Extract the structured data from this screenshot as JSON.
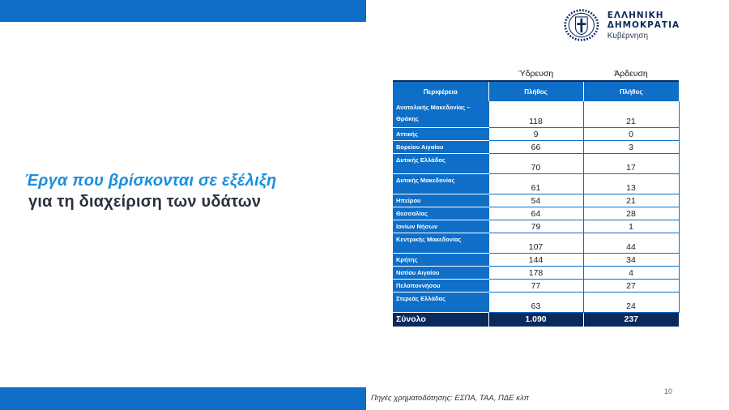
{
  "logo": {
    "title": "ΕΛΛΗΝΙΚΗ ΔΗΜΟΚΡΑΤΙΑ",
    "subtitle": "Κυβέρνηση",
    "icon": "greek-emblem-icon"
  },
  "heading": {
    "line1": "Έργα που βρίσκονται σε εξέλιξη",
    "line2": "για τη διαχείριση των υδάτων"
  },
  "table": {
    "group_headers": [
      "Ύδρευση",
      "Άρδευση"
    ],
    "sub_headers": [
      "Περιφέρεια",
      "Πλήθος",
      "Πλήθος"
    ],
    "rows": [
      {
        "region": "Ανατολικής Μακεδονίας – Θράκης",
        "water_supply": "118",
        "irrigation": "21"
      },
      {
        "region": "Αττικής",
        "water_supply": "9",
        "irrigation": "0"
      },
      {
        "region": "Βορείου Αιγαίου",
        "water_supply": "66",
        "irrigation": "3"
      },
      {
        "region": "Δυτικής Ελλάδας",
        "water_supply": "70",
        "irrigation": "17"
      },
      {
        "region": "Δυτικής Μακεδονίας",
        "water_supply": "61",
        "irrigation": "13"
      },
      {
        "region": "Ηπείρου",
        "water_supply": "54",
        "irrigation": "21"
      },
      {
        "region": "Θεσσαλίας",
        "water_supply": "64",
        "irrigation": "28"
      },
      {
        "region": "Ιονίων Νήσων",
        "water_supply": "79",
        "irrigation": "1"
      },
      {
        "region": "Κεντρικής Μακεδονίας",
        "water_supply": "107",
        "irrigation": "44"
      },
      {
        "region": "Κρήτης",
        "water_supply": "144",
        "irrigation": "34"
      },
      {
        "region": "Νοτίου Αιγαίου",
        "water_supply": "178",
        "irrigation": "4"
      },
      {
        "region": "Πελοποννήσου",
        "water_supply": "77",
        "irrigation": "27"
      },
      {
        "region": "Στερεάς Ελλάδας",
        "water_supply": "63",
        "irrigation": "24"
      }
    ],
    "total": {
      "label": "Σύνολο",
      "water_supply": "1.090",
      "irrigation": "237"
    }
  },
  "footer": {
    "source": "Πηγές χρηματοδότησης: ΕΣΠΑ, ΤΑΑ, ΠΔΕ κλπ",
    "page_number": "10"
  },
  "colors": {
    "accent": "#0e6ec8",
    "navy": "#0b2a5c",
    "heading_blue": "#1a8fe0"
  }
}
